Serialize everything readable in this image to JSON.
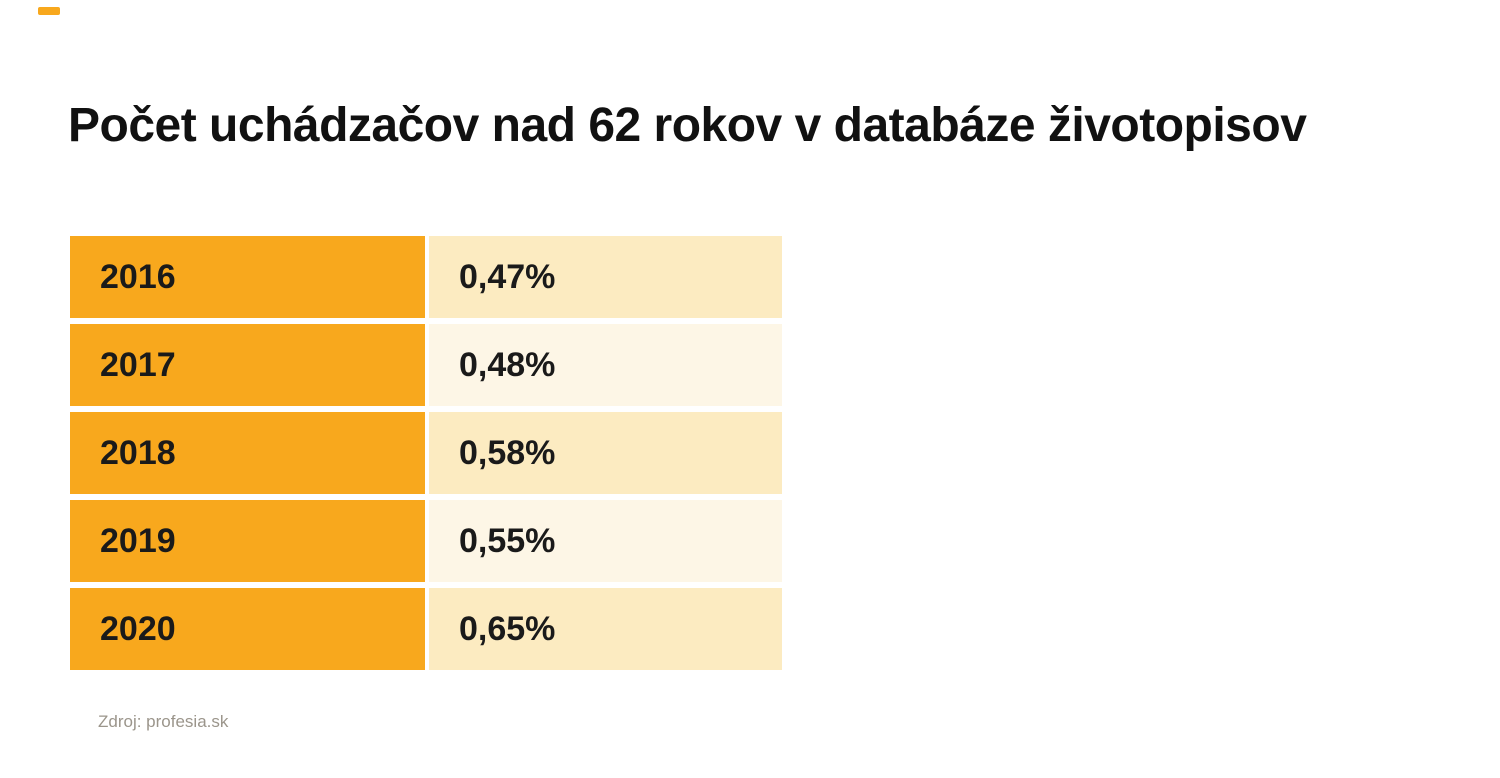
{
  "header": {
    "title": "Počet uchádzačov nad 62 rokov v databáze životopisov"
  },
  "chart_data": {
    "type": "table",
    "title": "Počet uchádzačov nad 62 rokov v databáze životopisov",
    "categories": [
      "2016",
      "2017",
      "2018",
      "2019",
      "2020"
    ],
    "values": [
      "0,47%",
      "0,48%",
      "0,58%",
      "0,55%",
      "0,65%"
    ],
    "values_numeric": [
      0.47,
      0.48,
      0.58,
      0.55,
      0.65
    ],
    "unit": "%",
    "source": "Zdroj: profesia.sk",
    "layout": {
      "legend": "none",
      "grid": "off",
      "columns": [
        "year",
        "share_of_database"
      ]
    },
    "colors": {
      "year_cell": "#F8A81D",
      "value_cell_dark": "#FCEBC1",
      "value_cell_light": "#FDF6E6",
      "text": "#1A1A1A",
      "source_text": "#9B958B",
      "background": "#FFFFFF",
      "accent": "#F8A81D"
    }
  },
  "footer": {
    "source": "Zdroj: profesia.sk"
  }
}
